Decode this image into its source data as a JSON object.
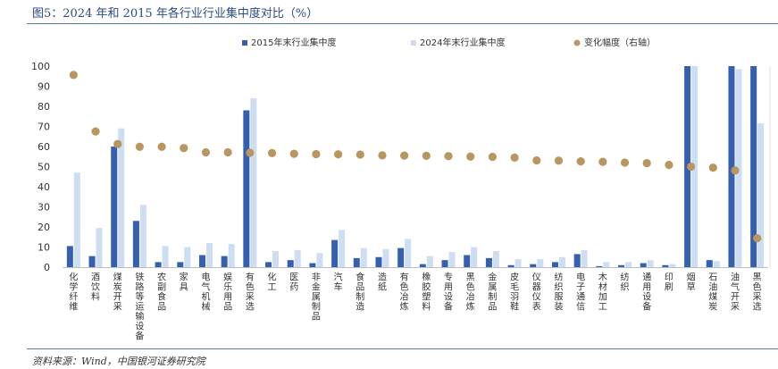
{
  "title": "图5：2024 年和 2015 年各行业行业集中度对比（%）",
  "source": "资料来源：Wind，中国银河证券研究院",
  "colors": {
    "series2015": "#3560b0",
    "series2024": "#cdddf2",
    "change": "#b99560",
    "title": "#2b4a86",
    "rule": "#5a78ad"
  },
  "chart_data": {
    "type": "bar",
    "title": "图5：2024 年和 2015 年各行业行业集中度对比（%）",
    "legend_position": "top",
    "categories": [
      "化学纤维",
      "酒饮料",
      "煤炭开采",
      "铁路等运输设备",
      "农副食品",
      "家具",
      "电气机械",
      "娱乐用品",
      "有色采选",
      "化工",
      "医药",
      "非金属制品",
      "汽车",
      "食品制造",
      "造纸",
      "有色冶炼",
      "橡胶塑料",
      "专用设备",
      "黑色冶炼",
      "金属制品",
      "皮毛羽鞋",
      "仪器仪表",
      "纺织服装",
      "电子通信",
      "木材加工",
      "纺织",
      "通用设备",
      "印刷",
      "烟草",
      "石油煤炭",
      "油气开采",
      "黑色采选"
    ],
    "ylim": [
      0,
      100
    ],
    "yticks": [
      "0",
      "10",
      "20",
      "30",
      "40",
      "50",
      "60",
      "70",
      "80",
      "90",
      "100"
    ],
    "series": [
      {
        "name": "2015年末行业集中度",
        "kind": "bar",
        "axis": "left",
        "values": [
          10.5,
          5.5,
          60,
          23,
          2.5,
          2.5,
          6,
          5.5,
          78,
          2.5,
          3.5,
          2,
          13.5,
          4.5,
          5,
          9.5,
          1.5,
          3.5,
          6,
          4.5,
          1,
          1.5,
          2.5,
          6.5,
          0.5,
          1,
          2,
          1,
          100,
          3.5,
          100,
          100
        ]
      },
      {
        "name": "2024年末行业集中度",
        "kind": "bar",
        "axis": "left",
        "values": [
          47,
          19.5,
          69,
          31,
          10.5,
          10,
          12,
          11.5,
          84,
          8,
          8.5,
          7,
          18.5,
          9.5,
          9,
          14,
          5.5,
          7.5,
          10,
          8,
          4,
          4,
          5,
          8.5,
          2.5,
          2.5,
          3.5,
          1.5,
          100,
          3,
          98.5,
          71.5
        ]
      },
      {
        "name": "变化幅度（右轴）",
        "kind": "scatter",
        "axis": "right",
        "values": [
          36.5,
          14,
          9,
          7.9,
          7.9,
          7.4,
          5.7,
          5.7,
          5.5,
          5.4,
          5.1,
          5,
          4.9,
          4.8,
          4.5,
          4.4,
          4.3,
          4.2,
          4,
          3.9,
          3.6,
          2.5,
          2.4,
          2.1,
          1.9,
          1.6,
          1.4,
          0.7,
          0,
          -0.4,
          -1.5,
          -28.5
        ]
      }
    ],
    "right_ylim": [
      -40,
      40
    ],
    "right_yticks_visible": false
  }
}
